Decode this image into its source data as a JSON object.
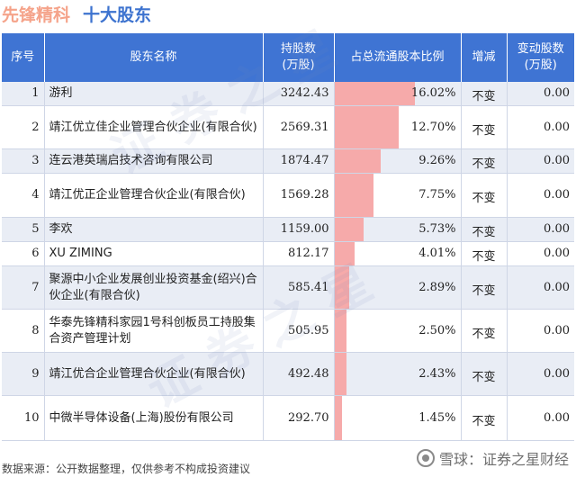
{
  "title": {
    "company": "先锋精科",
    "section": "十大股东"
  },
  "columns": {
    "rank": "序号",
    "name": "股东名称",
    "shares": "持股数\n(万股)",
    "ratio": "占总流通股本比例",
    "change": "增减",
    "delta": "变动股数\n(万股)"
  },
  "rows": [
    {
      "rank": "1",
      "name": "游利",
      "shares": "3242.43",
      "ratio": 16.02,
      "ratio_text": "16.02%",
      "change": "不变",
      "delta": "0.00"
    },
    {
      "rank": "2",
      "name": "靖江优立佳企业管理合伙企业(有限合伙)",
      "shares": "2569.31",
      "ratio": 12.7,
      "ratio_text": "12.70%",
      "change": "不变",
      "delta": "0.00"
    },
    {
      "rank": "3",
      "name": "连云港英瑞启技术咨询有限公司",
      "shares": "1874.47",
      "ratio": 9.26,
      "ratio_text": "9.26%",
      "change": "不变",
      "delta": "0.00"
    },
    {
      "rank": "4",
      "name": "靖江优正企业管理合伙企业(有限合伙)",
      "shares": "1569.28",
      "ratio": 7.75,
      "ratio_text": "7.75%",
      "change": "不变",
      "delta": "0.00"
    },
    {
      "rank": "5",
      "name": "李欢",
      "shares": "1159.00",
      "ratio": 5.73,
      "ratio_text": "5.73%",
      "change": "不变",
      "delta": "0.00"
    },
    {
      "rank": "6",
      "name": "XU ZIMING",
      "shares": "812.17",
      "ratio": 4.01,
      "ratio_text": "4.01%",
      "change": "不变",
      "delta": "0.00"
    },
    {
      "rank": "7",
      "name": "聚源中小企业发展创业投资基金(绍兴)合伙企业(有限合伙)",
      "shares": "585.41",
      "ratio": 2.89,
      "ratio_text": "2.89%",
      "change": "不变",
      "delta": "0.00"
    },
    {
      "rank": "8",
      "name": "华泰先锋精科家园1号科创板员工持股集合资产管理计划",
      "shares": "505.95",
      "ratio": 2.5,
      "ratio_text": "2.50%",
      "change": "不变",
      "delta": "0.00"
    },
    {
      "rank": "9",
      "name": "靖江优合企业管理合伙企业(有限合伙)",
      "shares": "492.48",
      "ratio": 2.43,
      "ratio_text": "2.43%",
      "change": "不变",
      "delta": "0.00"
    },
    {
      "rank": "10",
      "name": "中微半导体设备(上海)股份有限公司",
      "shares": "292.70",
      "ratio": 1.45,
      "ratio_text": "1.45%",
      "change": "不变",
      "delta": "0.00"
    }
  ],
  "bar_color": "#f6aaaa",
  "header_color": "#3f74d3",
  "footer": {
    "source": "数据来源：公开数据整理，仅供参考不构成投资建议",
    "brand": "雪球：证券之星财经"
  }
}
